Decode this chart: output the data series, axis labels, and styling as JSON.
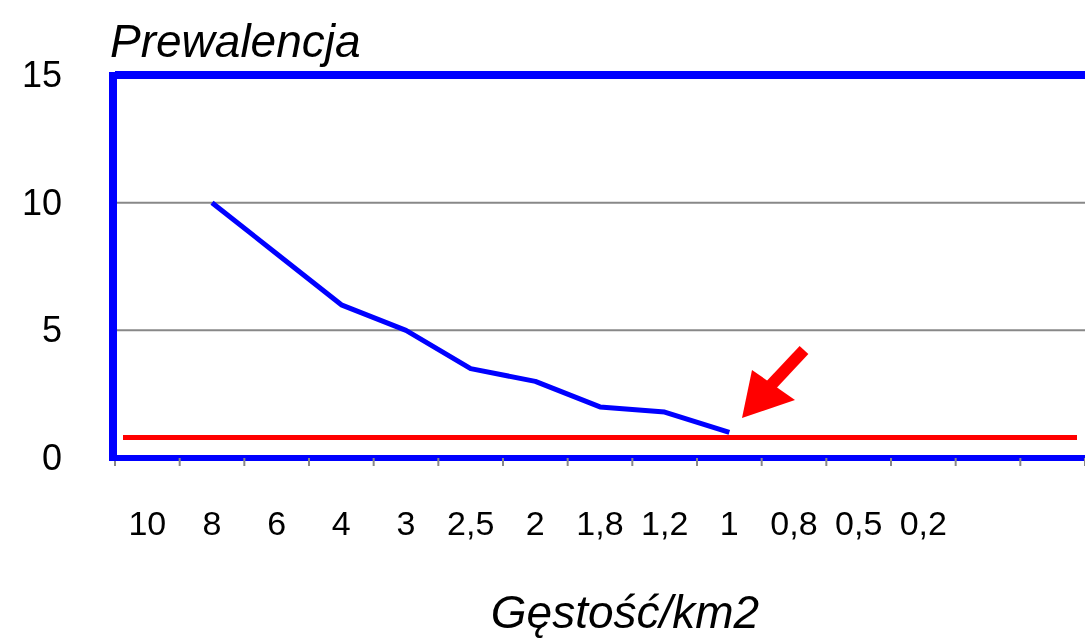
{
  "chart_data": {
    "type": "line",
    "ylabel": "Prewalencja",
    "xlabel": "Gęstość/km2",
    "categories": [
      "10",
      "8",
      "6",
      "4",
      "3",
      "2,5",
      "2",
      "1,8",
      "1,2",
      "1",
      "0,8",
      "0,5",
      "0,2",
      null,
      null
    ],
    "series": [
      {
        "color": "#0000ff",
        "values": [
          null,
          10,
          8,
          6,
          5,
          3.5,
          3,
          2,
          1.8,
          1,
          null,
          null,
          null,
          null,
          null
        ]
      }
    ],
    "ylim": [
      0,
      15
    ],
    "yticks": [
      0,
      5,
      10,
      15
    ],
    "grid": "y",
    "ref_lines": [
      {
        "axis": "y",
        "value": 0.8,
        "color": "#ff0000"
      }
    ]
  }
}
